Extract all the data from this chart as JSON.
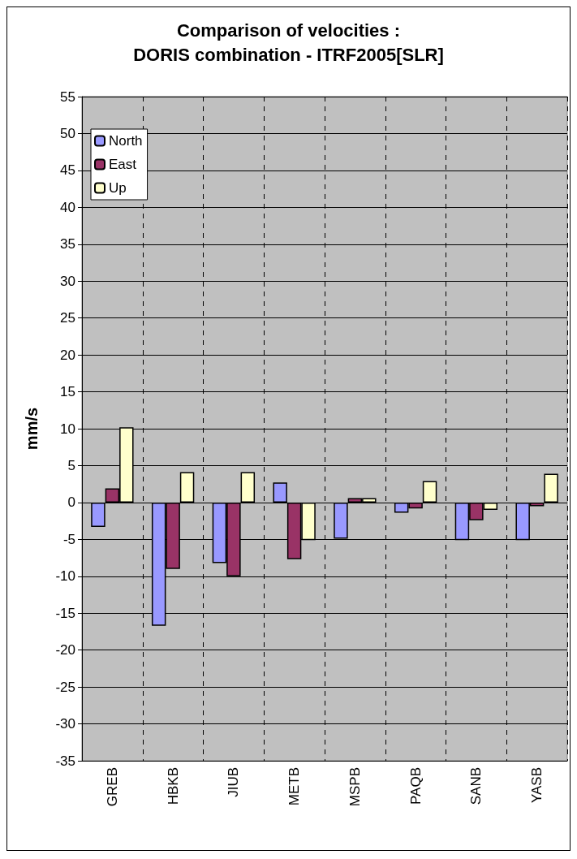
{
  "chart_data": {
    "type": "bar",
    "title": "Comparison of velocities :",
    "subtitle": "DORIS combination - ITRF2005[SLR]",
    "ylabel": "mm/s",
    "categories": [
      "GREB",
      "HBKB",
      "JIUB",
      "METB",
      "MSPB",
      "PAQB",
      "SANB",
      "YASB"
    ],
    "series": [
      {
        "name": "North",
        "color": "#9999ff",
        "values": [
          -3.3,
          -16.7,
          -8.2,
          2.7,
          -4.9,
          -1.4,
          -5.1,
          -5.1
        ]
      },
      {
        "name": "East",
        "color": "#993366",
        "values": [
          1.9,
          -9.0,
          -10.0,
          -7.7,
          0.6,
          -0.8,
          -2.4,
          -0.5
        ]
      },
      {
        "name": "Up",
        "color": "#ffffcc",
        "values": [
          10.2,
          4.1,
          4.1,
          -5.1,
          0.6,
          2.9,
          -1.0,
          3.9
        ]
      }
    ],
    "ylim": [
      -35,
      55
    ],
    "yticks": [
      -35,
      -30,
      -25,
      -20,
      -15,
      -10,
      -5,
      0,
      5,
      10,
      15,
      20,
      25,
      30,
      35,
      40,
      45,
      50,
      55
    ],
    "grid": true,
    "legend": "top left"
  }
}
